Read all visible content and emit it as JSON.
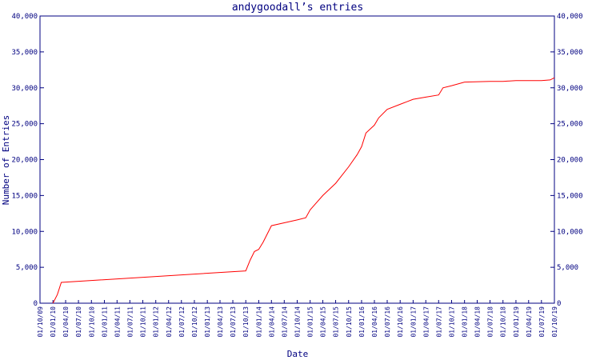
{
  "chart_data": {
    "type": "line",
    "title": "andygoodall’s entries",
    "xlabel": "Date",
    "ylabel": "Number of Entries",
    "x": [
      "01/01/10",
      "01/02/10",
      "01/03/10",
      "01/10/13",
      "01/11/13",
      "01/12/13",
      "01/01/14",
      "01/02/14",
      "01/04/14",
      "01/07/14",
      "01/10/14",
      "01/12/14",
      "01/01/15",
      "01/04/15",
      "01/07/15",
      "01/10/15",
      "01/12/15",
      "01/01/16",
      "01/02/16",
      "01/04/16",
      "01/05/16",
      "01/07/16",
      "01/10/16",
      "01/01/17",
      "01/04/17",
      "01/07/17",
      "01/08/17",
      "01/10/17",
      "01/01/18",
      "01/07/18",
      "01/10/18",
      "01/01/19",
      "01/07/19",
      "01/09/19",
      "01/10/19"
    ],
    "series": [
      {
        "name": "entries",
        "color": "#ff0000",
        "values": [
          0,
          1200,
          2900,
          4500,
          6000,
          7200,
          7500,
          8500,
          10800,
          11200,
          11600,
          11900,
          13000,
          15000,
          16700,
          19000,
          20700,
          21800,
          23700,
          24800,
          25800,
          27000,
          27700,
          28400,
          28700,
          29000,
          30000,
          30300,
          30800,
          30900,
          30900,
          31000,
          31000,
          31100,
          31400
        ]
      }
    ],
    "xlim": [
      "01/10/09",
      "01/10/19"
    ],
    "xticks": [
      "01/10/09",
      "01/01/10",
      "01/04/10",
      "01/07/10",
      "01/10/10",
      "01/01/11",
      "01/04/11",
      "01/07/11",
      "01/10/11",
      "01/01/12",
      "01/04/12",
      "01/07/12",
      "01/10/12",
      "01/01/13",
      "01/04/13",
      "01/07/13",
      "01/10/13",
      "01/01/14",
      "01/04/14",
      "01/07/14",
      "01/10/14",
      "01/01/15",
      "01/04/15",
      "01/07/15",
      "01/10/15",
      "01/01/16",
      "01/04/16",
      "01/07/16",
      "01/10/16",
      "01/01/17",
      "01/04/17",
      "01/07/17",
      "01/10/17",
      "01/01/18",
      "01/04/18",
      "01/07/18",
      "01/10/18",
      "01/01/19",
      "01/04/19",
      "01/07/19",
      "01/10/19"
    ],
    "ylim": [
      0,
      40000
    ],
    "yticks": [
      0,
      {
        "value": 5000,
        "label": "5,000"
      },
      {
        "value": 10000,
        "label": "10,000"
      },
      {
        "value": 15000,
        "label": "15,000"
      },
      {
        "value": 20000,
        "label": "20,000"
      },
      {
        "value": 25000,
        "label": "25,000"
      },
      {
        "value": 30000,
        "label": "30,000"
      },
      {
        "value": 35000,
        "label": "35,000"
      },
      {
        "value": 40000,
        "label": "40,000"
      }
    ],
    "y2lim": [
      0,
      40000
    ],
    "y2ticks": [
      0,
      {
        "value": 5000,
        "label": "5,000"
      },
      {
        "value": 10000,
        "label": "10,000"
      },
      {
        "value": 15000,
        "label": "15,000"
      },
      {
        "value": 20000,
        "label": "20,000"
      },
      {
        "value": 25000,
        "label": "25,000"
      },
      {
        "value": 30000,
        "label": "30,000"
      },
      {
        "value": 35000,
        "label": "35,000"
      },
      {
        "value": 40000,
        "label": "40,000"
      }
    ],
    "grid": false
  }
}
